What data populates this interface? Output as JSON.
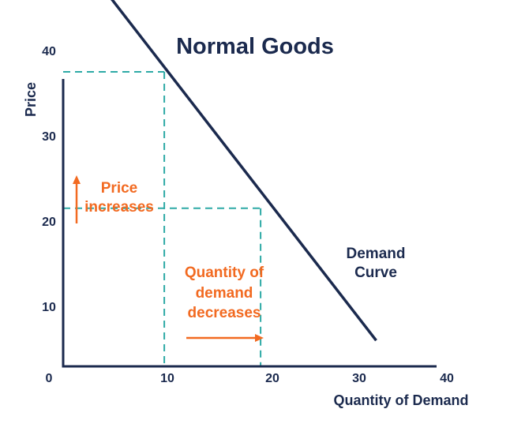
{
  "chart_data": {
    "type": "line",
    "title": "Normal Goods",
    "xlabel": "Quantity of Demand",
    "ylabel": "Price",
    "xlim": [
      0,
      40
    ],
    "ylim": [
      0,
      50
    ],
    "x_ticks": [
      "0",
      "10",
      "20",
      "30",
      "40"
    ],
    "y_ticks": [
      "10",
      "20",
      "30",
      "40"
    ],
    "grid": false,
    "series": [
      {
        "name": "Demand Curve",
        "points": [
          [
            3,
            49
          ],
          [
            32.5,
            6
          ]
        ]
      }
    ],
    "reference_points": [
      {
        "x": 10.5,
        "y": 37.5
      },
      {
        "x": 20.5,
        "y": 21.5
      }
    ],
    "annotations": {
      "curve_label": [
        "Demand",
        "Curve"
      ],
      "price_label": [
        "Price",
        "increases"
      ],
      "quantity_label": [
        "Quantity of",
        "demand",
        "decreases"
      ]
    },
    "colors": {
      "axis": "#1b2a4e",
      "curve": "#1b2a4e",
      "dashed": "#2eaaa6",
      "annotation": "#f26a21",
      "text": "#1b2a4e"
    }
  }
}
